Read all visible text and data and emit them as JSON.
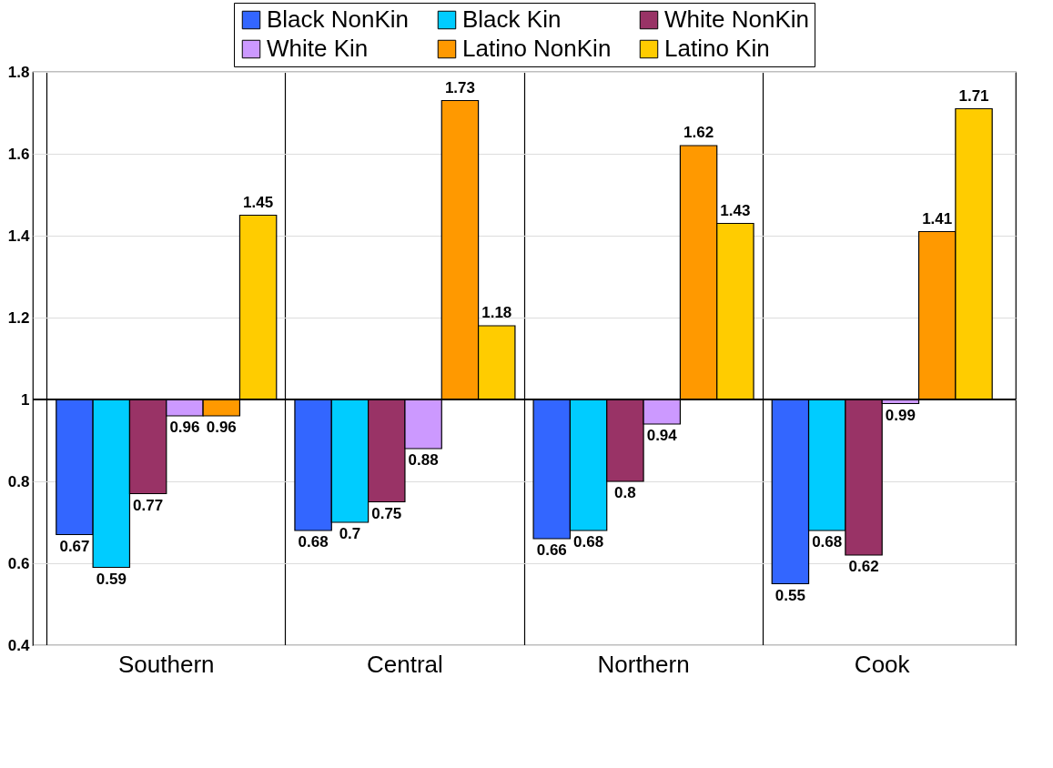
{
  "chart_data": {
    "type": "bar",
    "categories": [
      "Southern",
      "Central",
      "Northern",
      "Cook"
    ],
    "series": [
      {
        "name": "Black NonKin",
        "color": "#3366ff",
        "base": [
          1,
          1,
          1,
          1
        ],
        "values": [
          -0.33,
          -0.32,
          -0.34,
          -0.45
        ],
        "value_labels": [
          "0.67",
          "0.68",
          "0.66",
          "0.55"
        ]
      },
      {
        "name": "Black Kin",
        "color": "#00ccff",
        "base": [
          1,
          1,
          1,
          1
        ],
        "values": [
          -0.41,
          -0.3,
          -0.32,
          -0.32
        ],
        "value_labels": [
          "0.59",
          "0.7",
          "0.68",
          "0.68"
        ]
      },
      {
        "name": "White NonKin",
        "color": "#993366",
        "base": [
          1,
          1,
          1,
          1
        ],
        "values": [
          -0.23,
          -0.25,
          -0.2,
          -0.38
        ],
        "value_labels": [
          "0.77",
          "0.75",
          "0.8",
          "0.62"
        ]
      },
      {
        "name": "White Kin",
        "color": "#cc99ff",
        "base": [
          1,
          1,
          1,
          1
        ],
        "values": [
          -0.04,
          -0.12,
          -0.06,
          -0.01
        ],
        "value_labels": [
          "0.96",
          "0.88",
          "0.94",
          "0.99"
        ]
      },
      {
        "name": "Latino NonKin",
        "color": "#ff9900",
        "base": [
          1,
          1,
          1,
          1
        ],
        "values": [
          -0.04,
          0.73,
          0.62,
          0.41
        ],
        "value_labels": [
          "0.96",
          "1.73",
          "1.62",
          "1.41"
        ]
      },
      {
        "name": "Latino Kin",
        "color": "#ffcc00",
        "base": [
          1,
          1,
          1,
          1
        ],
        "values": [
          0.45,
          0.18,
          0.43,
          0.71
        ],
        "value_labels": [
          "1.45",
          "1.18",
          "1.43",
          "1.71"
        ]
      }
    ],
    "ylim": [
      0.4,
      1.8
    ],
    "yticks": [
      0.4,
      0.6,
      0.8,
      1,
      1.2,
      1.4,
      1.6,
      1.8
    ],
    "ref_lines": [
      {
        "axis": "y",
        "value": 1
      }
    ],
    "grid": true,
    "legend": "top"
  }
}
